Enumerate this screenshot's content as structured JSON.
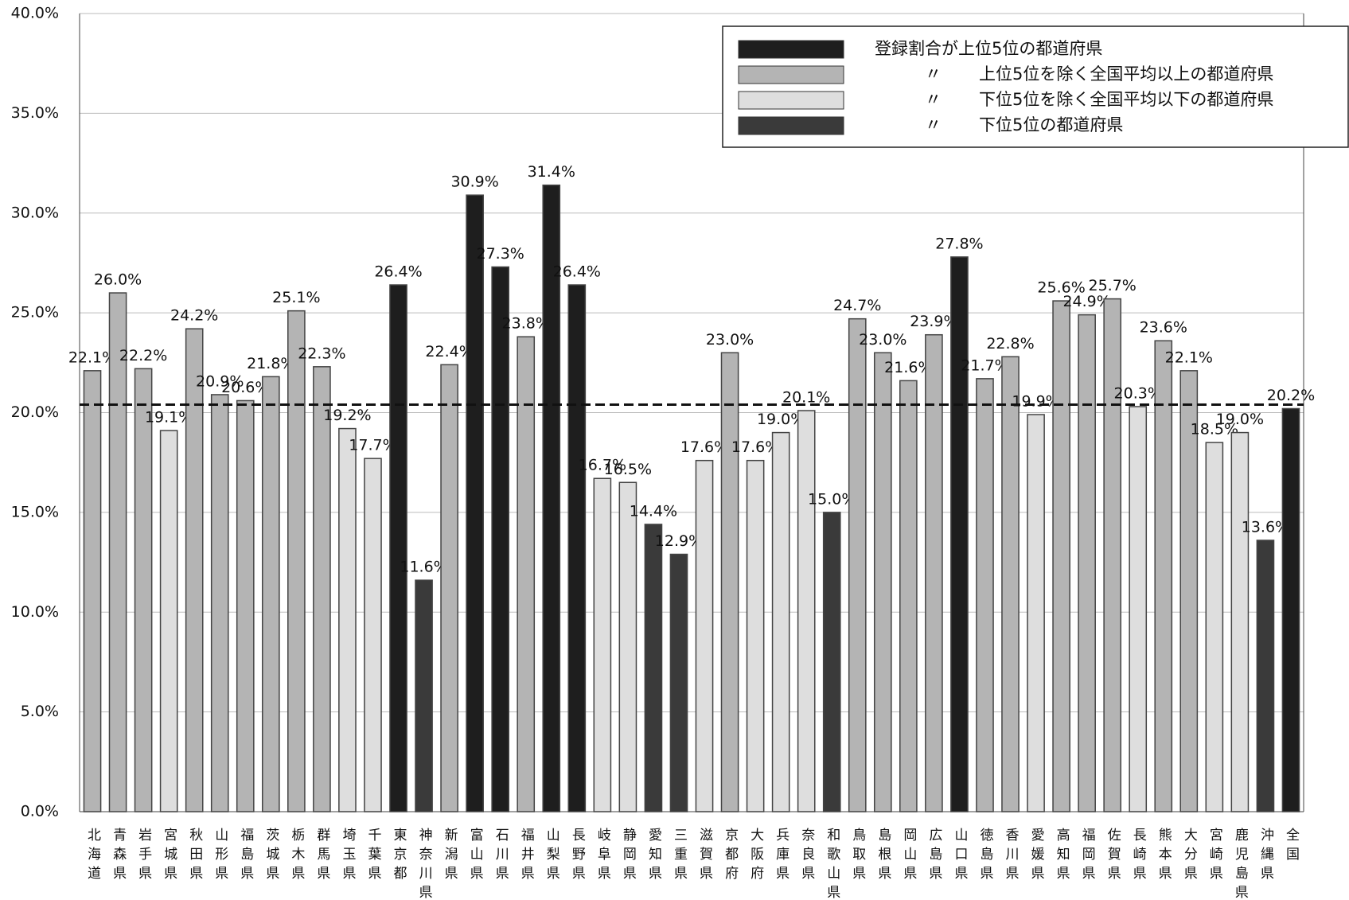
{
  "chart_data": {
    "type": "bar",
    "categories": [
      "北海道",
      "青森県",
      "岩手県",
      "宮城県",
      "秋田県",
      "山形県",
      "福島県",
      "茨城県",
      "栃木県",
      "群馬県",
      "埼玉県",
      "千葉県",
      "東京都",
      "神奈川県",
      "新潟県",
      "富山県",
      "石川県",
      "福井県",
      "山梨県",
      "長野県",
      "岐阜県",
      "静岡県",
      "愛知県",
      "三重県",
      "滋賀県",
      "京都府",
      "大阪府",
      "兵庫県",
      "奈良県",
      "和歌山県",
      "鳥取県",
      "島根県",
      "岡山県",
      "広島県",
      "山口県",
      "徳島県",
      "香川県",
      "愛媛県",
      "高知県",
      "福岡県",
      "佐賀県",
      "長崎県",
      "熊本県",
      "大分県",
      "宮崎県",
      "鹿児島県",
      "沖縄県",
      "全国"
    ],
    "values": [
      22.1,
      26.0,
      22.2,
      19.1,
      24.2,
      20.9,
      20.6,
      21.8,
      25.1,
      22.3,
      19.2,
      17.7,
      26.4,
      11.6,
      22.4,
      30.9,
      27.3,
      23.8,
      31.4,
      26.4,
      16.7,
      16.5,
      14.4,
      12.9,
      17.6,
      23.0,
      17.6,
      19.0,
      20.1,
      15.0,
      24.7,
      23.0,
      21.6,
      23.9,
      27.8,
      21.7,
      22.8,
      19.9,
      25.6,
      24.9,
      25.7,
      20.3,
      23.6,
      22.1,
      18.5,
      19.0,
      13.6,
      20.2
    ],
    "value_labels": [
      "22.1%",
      "26.0%",
      "22.2%",
      "19.1%",
      "24.2%",
      "20.9%",
      "20.6%",
      "21.8%",
      "25.1%",
      "22.3%",
      "19.2%",
      "17.7%",
      "26.4%",
      "11.6%",
      "22.4%",
      "30.9%",
      "27.3%",
      "23.8%",
      "31.4%",
      "26.4%",
      "16.7%",
      "16.5%",
      "14.4%",
      "12.9%",
      "17.6%",
      "23.0%",
      "17.6%",
      "19.0%",
      "20.1%",
      "15.0%",
      "24.7%",
      "23.0%",
      "21.6%",
      "23.9%",
      "27.8%",
      "21.7%",
      "22.8%",
      "19.9%",
      "25.6%",
      "24.9%",
      "25.7%",
      "20.3%",
      "23.6%",
      "22.1%",
      "18.5%",
      "19.0%",
      "13.6%",
      "20.2%"
    ],
    "groups": [
      1,
      1,
      1,
      2,
      1,
      1,
      1,
      1,
      1,
      1,
      2,
      2,
      0,
      3,
      1,
      0,
      0,
      1,
      0,
      0,
      2,
      2,
      3,
      3,
      2,
      1,
      2,
      2,
      2,
      3,
      1,
      1,
      1,
      1,
      0,
      1,
      1,
      2,
      1,
      1,
      1,
      2,
      1,
      1,
      2,
      2,
      3,
      0
    ],
    "legend": [
      {
        "name": "登録割合が上位5位の都道府県",
        "color": "#1e1e1e"
      },
      {
        "ditto": "〃",
        "name": "上位5位を除く全国平均以上の都道府県",
        "color": "#b4b4b4"
      },
      {
        "ditto": "〃",
        "name": "下位5位を除く全国平均以下の都道府県",
        "color": "#dedede"
      },
      {
        "ditto": "〃",
        "name": "下位5位の都道府県",
        "color": "#3a3a3a"
      }
    ],
    "reference_line": 20.4,
    "ylim": [
      0,
      40
    ],
    "yticks": [
      {
        "value": 0,
        "label": "0.0%"
      },
      {
        "value": 5,
        "label": "5.0%"
      },
      {
        "value": 10,
        "label": "10.0%"
      },
      {
        "value": 15,
        "label": "15.0%"
      },
      {
        "value": 20,
        "label": "20.0%"
      },
      {
        "value": 25,
        "label": "25.0%"
      },
      {
        "value": 30,
        "label": "30.0%"
      },
      {
        "value": 35,
        "label": "35.0%"
      },
      {
        "value": 40,
        "label": "40.0%"
      }
    ],
    "grid": true
  }
}
